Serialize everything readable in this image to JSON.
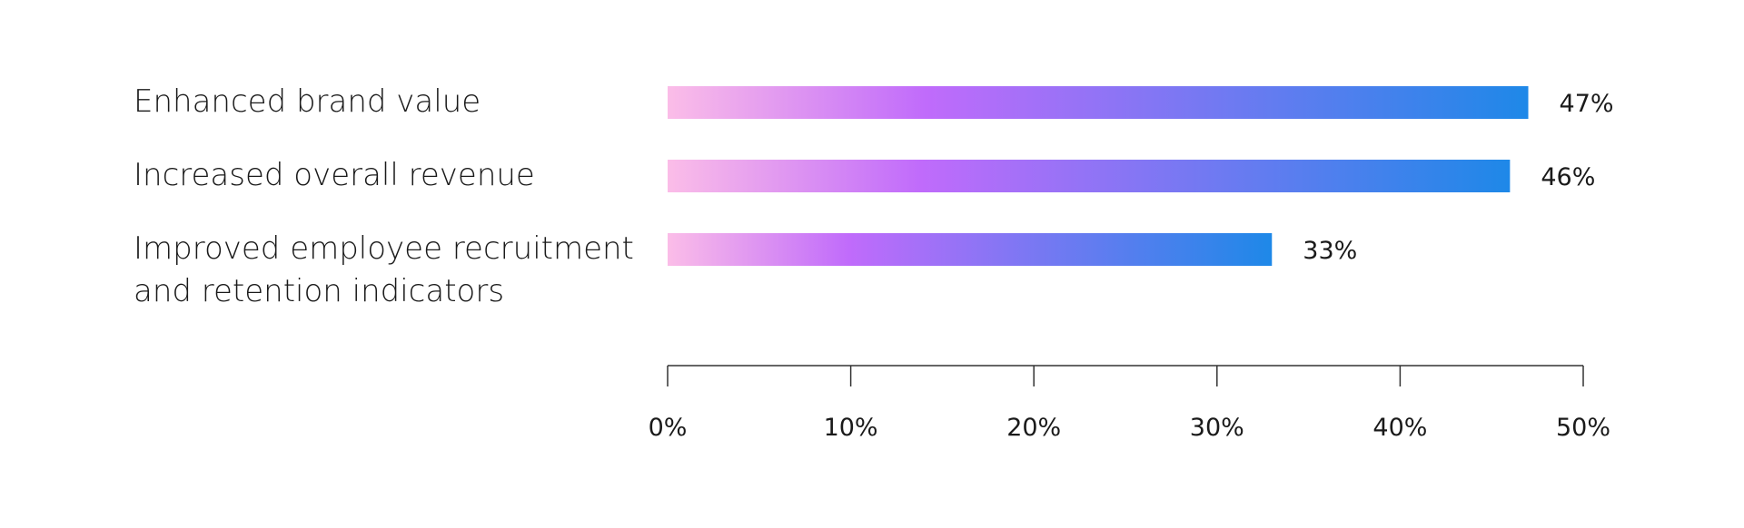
{
  "chart_data": {
    "type": "bar",
    "orientation": "horizontal",
    "categories": [
      [
        "Enhanced brand value"
      ],
      [
        "Increased overall revenue"
      ],
      [
        "Improved employee recruitment",
        "and retention indicators"
      ]
    ],
    "values": [
      47,
      46,
      33
    ],
    "value_labels": [
      "47%",
      "46%",
      "33%"
    ],
    "xlim": [
      0,
      50
    ],
    "ticks": [
      0,
      10,
      20,
      30,
      40,
      50
    ],
    "tick_labels": [
      "0%",
      "10%",
      "20%",
      "30%",
      "40%",
      "50%"
    ],
    "grid": false,
    "colors": {
      "gradient_start": "#fbbde8",
      "gradient_mid": "#c06bfb",
      "gradient_end": "#1e88e8",
      "axis": "#333333"
    }
  }
}
